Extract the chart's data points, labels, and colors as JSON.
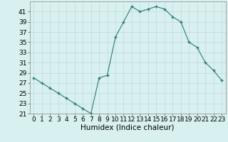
{
  "x": [
    0,
    1,
    2,
    3,
    4,
    5,
    6,
    7,
    8,
    9,
    10,
    11,
    12,
    13,
    14,
    15,
    16,
    17,
    18,
    19,
    20,
    21,
    22,
    23
  ],
  "y": [
    28,
    27,
    26,
    25,
    24,
    23,
    22,
    21,
    28,
    28.5,
    36,
    39,
    42,
    41,
    41.5,
    42,
    41.5,
    40,
    39,
    35,
    34,
    31,
    29.5,
    27.5
  ],
  "line_color": "#2d7d6e",
  "marker_color": "#2d7d6e",
  "bg_color": "#d8f0f0",
  "grid_color": "#c0d8d8",
  "xlabel": "Humidex (Indice chaleur)",
  "ylim": [
    21,
    43
  ],
  "xlim": [
    -0.5,
    23.5
  ],
  "yticks": [
    21,
    23,
    25,
    27,
    29,
    31,
    33,
    35,
    37,
    39,
    41
  ],
  "xticks": [
    0,
    1,
    2,
    3,
    4,
    5,
    6,
    7,
    8,
    9,
    10,
    11,
    12,
    13,
    14,
    15,
    16,
    17,
    18,
    19,
    20,
    21,
    22,
    23
  ],
  "tick_fontsize": 6.5,
  "xlabel_fontsize": 7.5
}
